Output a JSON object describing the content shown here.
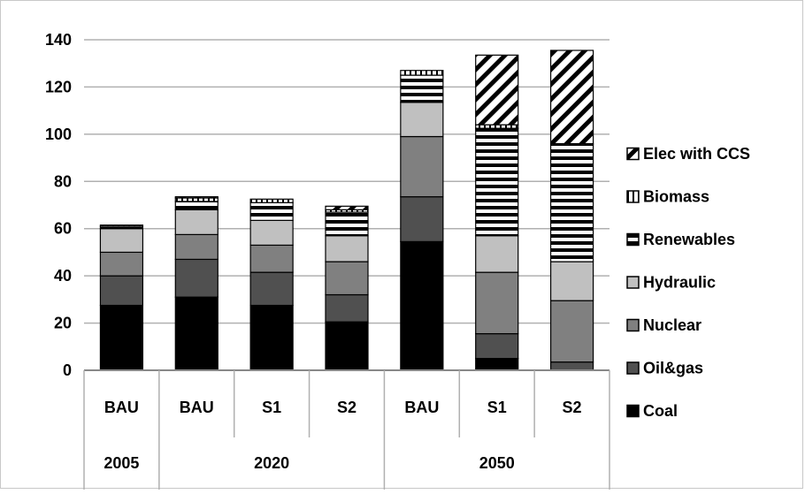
{
  "chart_data": {
    "type": "bar",
    "stacked": true,
    "ylim": [
      0,
      140
    ],
    "yticks": [
      0,
      20,
      40,
      60,
      80,
      100,
      120,
      140
    ],
    "grid": true,
    "legend_position": "right",
    "categories": [
      "BAU",
      "BAU",
      "S1",
      "S2",
      "BAU",
      "S1",
      "S2"
    ],
    "groups": [
      {
        "label": "2005",
        "span": 1
      },
      {
        "label": "2020",
        "span": 3
      },
      {
        "label": "2050",
        "span": 3
      }
    ],
    "series": [
      {
        "name": "Coal",
        "color": "#000000",
        "pattern": "solid",
        "values": [
          27.5,
          31,
          27.5,
          20.5,
          54.5,
          5,
          0
        ]
      },
      {
        "name": "Oil&gas",
        "color": "#505050",
        "pattern": "solid",
        "values": [
          12.5,
          16,
          14,
          11.5,
          19,
          10.5,
          3.5
        ]
      },
      {
        "name": "Nuclear",
        "color": "#808080",
        "pattern": "solid",
        "values": [
          10,
          10.5,
          11.5,
          14,
          25.5,
          26,
          26
        ]
      },
      {
        "name": "Hydraulic",
        "color": "#c0c0c0",
        "pattern": "solid",
        "values": [
          10,
          10.5,
          10.5,
          11,
          14.5,
          15.5,
          16.5
        ]
      },
      {
        "name": "Renewables",
        "color": "#ffffff",
        "pattern": "horizontal-stripes",
        "values": [
          1,
          3.5,
          7.5,
          10,
          11.5,
          45.5,
          49.5
        ]
      },
      {
        "name": "Biomass",
        "color": "#ffffff",
        "pattern": "vertical-stripes",
        "values": [
          0.5,
          1.5,
          1.5,
          1,
          2,
          1.5,
          0.5
        ]
      },
      {
        "name": "Elec with CCS",
        "color": "#ffffff",
        "pattern": "diagonal-stripes",
        "values": [
          0,
          0.5,
          0,
          1.5,
          0,
          29.5,
          39.5
        ]
      }
    ]
  }
}
